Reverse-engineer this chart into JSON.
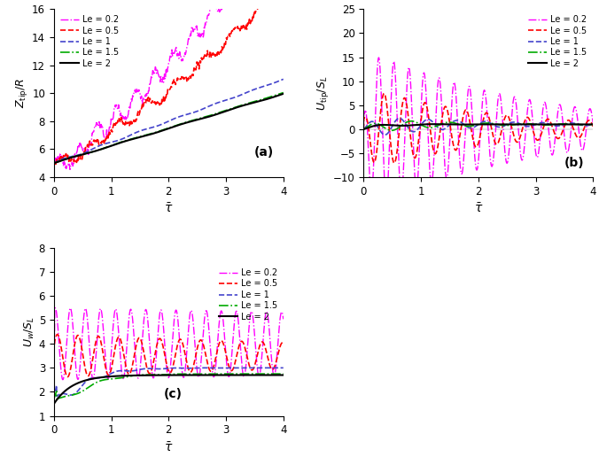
{
  "subplot_a": {
    "ylabel": "$Z_{\\mathrm{tip}}/R$",
    "xlabel": "$\\bar{\\tau}$",
    "label": "(a)",
    "xlim": [
      0,
      4
    ],
    "ylim": [
      4,
      16
    ],
    "yticks": [
      4,
      6,
      8,
      10,
      12,
      14,
      16
    ],
    "xticks": [
      0,
      1,
      2,
      3,
      4
    ]
  },
  "subplot_b": {
    "ylabel": "$U_{\\mathrm{tip}}/S_L$",
    "xlabel": "$\\bar{\\tau}$",
    "label": "(b)",
    "xlim": [
      0,
      4
    ],
    "ylim": [
      -10,
      25
    ],
    "yticks": [
      -10,
      -5,
      0,
      5,
      10,
      15,
      20,
      25
    ],
    "xticks": [
      0,
      1,
      2,
      3,
      4
    ]
  },
  "subplot_c": {
    "ylabel": "$U_w/S_L$",
    "xlabel": "$\\bar{\\tau}$",
    "label": "(c)",
    "xlim": [
      0,
      4
    ],
    "ylim": [
      1,
      8
    ],
    "yticks": [
      1,
      2,
      3,
      4,
      5,
      6,
      7,
      8
    ],
    "xticks": [
      0,
      1,
      2,
      3,
      4
    ]
  },
  "legend_entries": [
    "Le = 0.2",
    "Le = 0.5",
    "Le = 1",
    "Le = 1.5",
    "Le = 2"
  ],
  "colors": [
    "#ff00ff",
    "#ff0000",
    "#4444cc",
    "#00aa00",
    "#000000"
  ],
  "linestyles": [
    "-.",
    "--",
    "--",
    "-.",
    "-"
  ],
  "linewidths": [
    1.0,
    1.2,
    1.2,
    1.2,
    1.5
  ]
}
